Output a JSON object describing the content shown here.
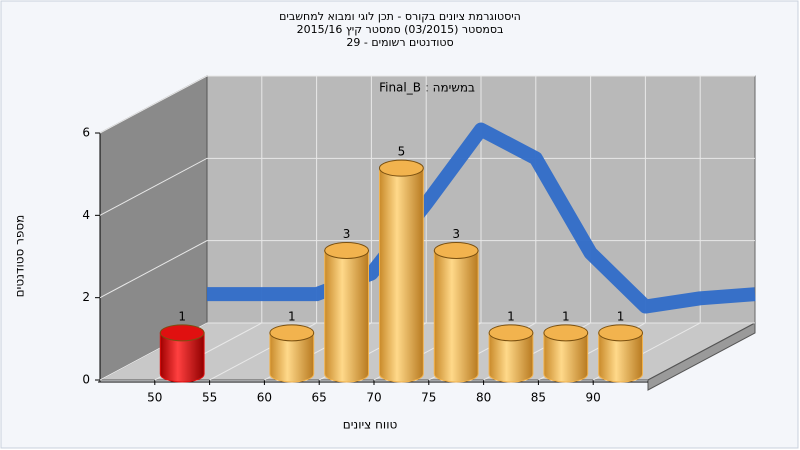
{
  "chart_data": {
    "type": "histogram",
    "title": "היסטוגרמת ציונים בקורס - תכן לוגי ומבוא למחשבים",
    "subtitle": "בסמסטר  (03/2015)  סמסטר קיץ 2015/16",
    "subtitle2": "סטודנטים רשומים - 29",
    "annotation": "במשימה : Final_B",
    "x_label": "טווח ציונים",
    "y_label": "מספר סטודנטים",
    "bins": [
      50,
      55,
      60,
      65,
      70,
      75,
      80,
      85,
      90,
      95
    ],
    "values": [
      1,
      0,
      1,
      3,
      5,
      3,
      1,
      1,
      1
    ],
    "bar_colors": [
      "#e01010",
      "#f2b34e",
      "#f2b34e",
      "#f2b34e",
      "#f2b34e",
      "#f2b34e",
      "#f2b34e",
      "#f2b34e",
      "#f2b34e"
    ],
    "curve": {
      "color": "#2f6cc8",
      "x": [
        45,
        50,
        55,
        60,
        65,
        70,
        75,
        80,
        85,
        90,
        95
      ],
      "values": [
        0.7,
        0.7,
        0.7,
        1.2,
        2.9,
        4.7,
        4.0,
        1.7,
        0.4,
        0.6,
        0.7
      ]
    },
    "xlim": [
      45,
      95
    ],
    "ylim": [
      0,
      6
    ],
    "xticks": [
      50,
      55,
      60,
      65,
      70,
      75,
      80,
      85,
      90
    ],
    "yticks": [
      0,
      2,
      4,
      6
    ],
    "grid": true
  }
}
